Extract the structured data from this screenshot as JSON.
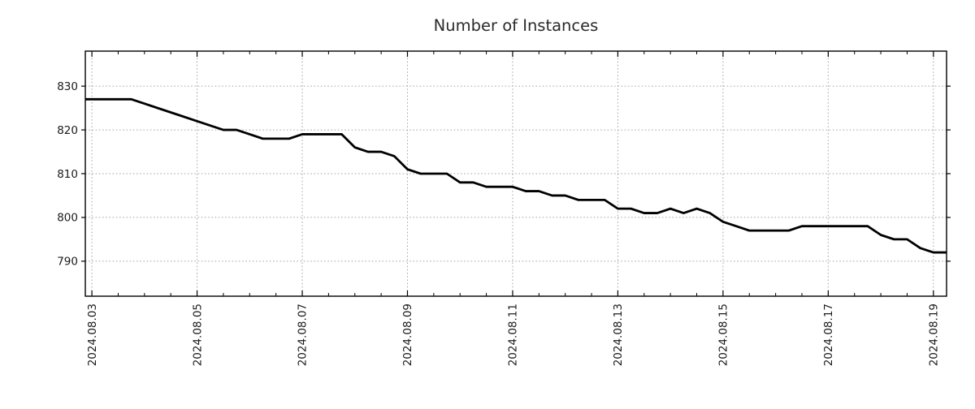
{
  "chart_data": {
    "type": "line",
    "title": "Number of Instances",
    "x_axis": {
      "tick_labels": [
        "2024.08.03",
        "2024.08.05",
        "2024.08.07",
        "2024.08.09",
        "2024.08.11",
        "2024.08.13",
        "2024.08.15",
        "2024.08.17",
        "2024.08.19"
      ],
      "tick_days": [
        0,
        2,
        4,
        6,
        8,
        10,
        12,
        14,
        16
      ],
      "minor_tick_step_days": 0.5,
      "xlim_days": [
        -0.125,
        16.25
      ],
      "label_rotation_deg": 90
    },
    "y_axis": {
      "tick_labels": [
        "790",
        "800",
        "810",
        "820",
        "830"
      ],
      "tick_values": [
        790,
        800,
        810,
        820,
        830
      ],
      "ylim": [
        782,
        838
      ]
    },
    "grid": {
      "show": true,
      "style": "dotted"
    },
    "legend": null,
    "series": [
      {
        "name": "instances",
        "x_hours": [
          -3,
          0,
          6,
          12,
          18,
          24,
          30,
          36,
          42,
          48,
          54,
          60,
          66,
          72,
          78,
          84,
          90,
          96,
          102,
          108,
          114,
          120,
          126,
          132,
          138,
          144,
          150,
          156,
          162,
          168,
          174,
          180,
          186,
          192,
          198,
          204,
          210,
          216,
          222,
          228,
          234,
          240,
          246,
          252,
          258,
          264,
          270,
          276,
          282,
          288,
          294,
          300,
          306,
          312,
          318,
          324,
          330,
          336,
          342,
          348,
          354,
          360,
          366,
          372,
          378,
          384,
          390
        ],
        "values": [
          827,
          827,
          827,
          827,
          827,
          826,
          825,
          824,
          823,
          822,
          821,
          820,
          820,
          819,
          818,
          818,
          818,
          819,
          819,
          819,
          819,
          816,
          815,
          815,
          814,
          811,
          810,
          810,
          810,
          808,
          808,
          807,
          807,
          807,
          806,
          806,
          805,
          805,
          804,
          804,
          804,
          802,
          802,
          801,
          801,
          802,
          801,
          802,
          801,
          799,
          798,
          797,
          797,
          797,
          797,
          798,
          798,
          798,
          798,
          798,
          798,
          796,
          795,
          795,
          793,
          792,
          792
        ]
      }
    ],
    "style": {
      "line_color": "#000000",
      "line_width": 2.8,
      "grid_color": "#a6a6a6",
      "axis_color": "#000000",
      "tick_label_color": "#1a1a1a",
      "title_color": "#2b2b2b",
      "background": "#ffffff",
      "tick_font_size": 13.5,
      "title_font_size": 19.5
    }
  }
}
